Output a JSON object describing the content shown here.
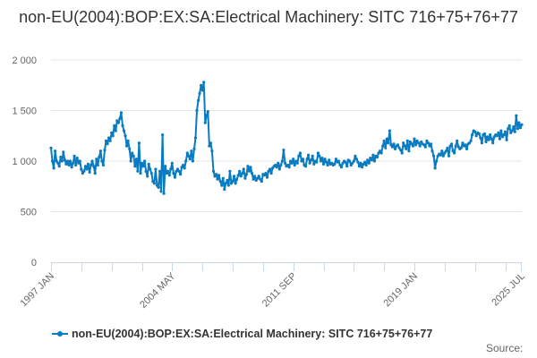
{
  "chart_data": {
    "type": "line",
    "title": "non-EU(2004):BOP:EX:SA:Electrical Machinery: SITC 716+75+76+77",
    "xlabel": "",
    "ylabel": "",
    "ylim": [
      0,
      2000
    ],
    "yticks": [
      0,
      500,
      1000,
      1500,
      2000
    ],
    "ytick_labels": [
      "0",
      "500",
      "1 000",
      "1 500",
      "2 000"
    ],
    "x_start": "1997 JAN",
    "x_end": "2025 JUL",
    "x_frequency": "monthly",
    "xtick_interval_months": 22,
    "xtick_labels": [
      {
        "label": "1997 JAN",
        "month_index": 0
      },
      {
        "label": "2004 MAY",
        "month_index": 88
      },
      {
        "label": "2011 SEP",
        "month_index": 176
      },
      {
        "label": "2019 JAN",
        "month_index": 264
      },
      {
        "label": "2025 JUL",
        "month_index": 342
      }
    ],
    "grid": true,
    "legend_position": "bottom",
    "color": "#0a7bc1",
    "series": [
      {
        "name": "non-EU(2004):BOP:EX:SA:Electrical Machinery: SITC 716+75+76+77",
        "values": [
          1130,
          1000,
          930,
          1100,
          1000,
          980,
          950,
          1040,
          1000,
          1090,
          1010,
          970,
          1000,
          960,
          1000,
          940,
          980,
          1050,
          960,
          1030,
          980,
          1000,
          920,
          880,
          900,
          950,
          920,
          970,
          890,
          960,
          1000,
          950,
          880,
          1020,
          960,
          1040,
          1100,
          1000,
          960,
          1110,
          1200,
          1170,
          1230,
          1200,
          1280,
          1250,
          1350,
          1300,
          1400,
          1380,
          1420,
          1480,
          1350,
          1300,
          1250,
          1150,
          1200,
          1120,
          1000,
          1080,
          1050,
          950,
          1020,
          900,
          1180,
          880,
          980,
          950,
          1000,
          900,
          850,
          970,
          920,
          880,
          800,
          780,
          920,
          760,
          740,
          900,
          700,
          1260,
          680,
          950,
          880,
          900,
          860,
          920,
          980,
          880,
          840,
          900,
          920,
          900,
          870,
          940,
          960,
          930,
          1000,
          1080,
          1050,
          1020,
          1100,
          1000,
          1120,
          1230,
          1500,
          1600,
          1670,
          1750,
          1700,
          1780,
          1380,
          1450,
          1490,
          1150,
          1180,
          1100,
          900,
          850,
          870,
          820,
          860,
          800,
          760,
          830,
          720,
          780,
          810,
          760,
          900,
          780,
          800,
          850,
          780,
          820,
          860,
          900,
          850,
          880,
          920,
          830,
          870,
          950,
          900,
          940,
          880,
          820,
          850,
          810,
          830,
          850,
          820,
          800,
          870,
          860,
          880,
          840,
          900,
          920,
          880,
          930,
          950,
          960,
          940,
          980,
          920,
          960,
          1000,
          1110,
          980,
          950,
          960,
          940,
          1000,
          980,
          1020,
          960,
          1000,
          980,
          1050,
          1080,
          1000,
          1020,
          960,
          950,
          1020,
          1060,
          980,
          1010,
          1050,
          970,
          1000,
          990,
          1080,
          1050,
          1000,
          1030,
          970,
          1020,
          990,
          960,
          1010,
          970,
          980,
          960,
          970,
          1020,
          990,
          1000,
          960,
          940,
          980,
          1000,
          990,
          950,
          1010,
          1000,
          960,
          980,
          1000,
          1050,
          1020,
          990,
          950,
          980,
          940,
          970,
          990,
          960,
          1010,
          980,
          1030,
          1010,
          1060,
          1000,
          1050,
          1040,
          1080,
          1100,
          1080,
          1150,
          1200,
          1130,
          1220,
          1180,
          1300,
          1160,
          1140,
          1170,
          1120,
          1150,
          1160,
          1130,
          1110,
          1080,
          1180,
          1150,
          1120,
          1200,
          1100,
          1190,
          1170,
          1150,
          1220,
          1160,
          1200,
          1180,
          1150,
          1190,
          1170,
          1160,
          1140,
          1200,
          1180,
          1150,
          1170,
          1100,
          1050,
          930,
          1000,
          1050,
          1070,
          1060,
          1100,
          1050,
          1080,
          1100,
          1130,
          1050,
          1150,
          1170,
          1100,
          1080,
          1150,
          1200,
          1140,
          1120,
          1130,
          1180,
          1150,
          1160,
          1120,
          1170,
          1180,
          1200,
          1260,
          1300,
          1290,
          1250,
          1280,
          1270,
          1230,
          1180,
          1260,
          1270,
          1190,
          1240,
          1210,
          1260,
          1220,
          1180,
          1240,
          1260,
          1250,
          1280,
          1220,
          1300,
          1240,
          1260,
          1290,
          1210,
          1320,
          1350,
          1280,
          1300,
          1340,
          1290,
          1450,
          1320,
          1380,
          1330,
          1360
        ]
      }
    ]
  },
  "source_label": "Source:"
}
